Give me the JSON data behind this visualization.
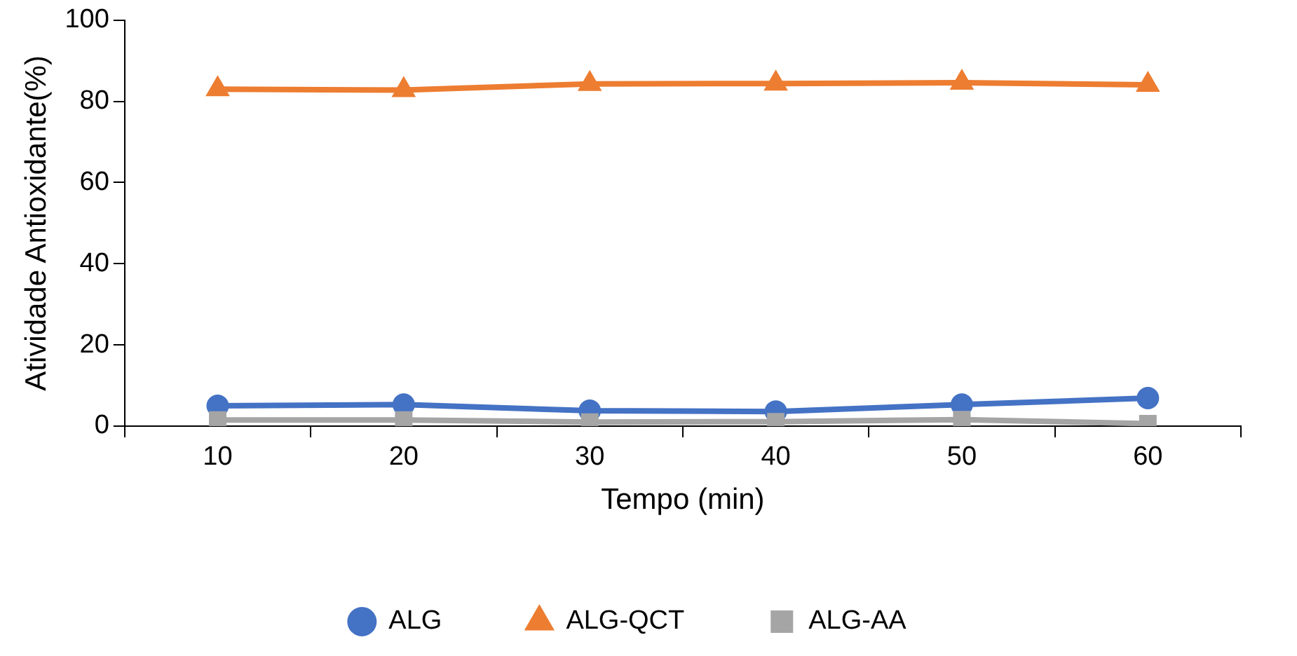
{
  "chart_data": {
    "type": "line",
    "xlabel": "Tempo (min)",
    "ylabel": "Atividade Antioxidante(%)",
    "categories": [
      "10",
      "20",
      "30",
      "40",
      "50",
      "60"
    ],
    "series": [
      {
        "name": "ALG",
        "color": "#4472c4",
        "marker": "circle",
        "values": [
          5.0,
          5.3,
          3.8,
          3.6,
          5.3,
          6.9
        ]
      },
      {
        "name": "ALG-QCT",
        "color": "#ed7d31",
        "marker": "triangle",
        "values": [
          83.0,
          82.8,
          84.3,
          84.4,
          84.6,
          84.1
        ]
      },
      {
        "name": "ALG-AA",
        "color": "#a5a5a5",
        "marker": "square",
        "values": [
          1.5,
          1.5,
          1.0,
          1.1,
          1.6,
          0.6
        ]
      }
    ],
    "ylim": [
      0,
      100
    ],
    "yticks": [
      0,
      20,
      40,
      60,
      80,
      100
    ],
    "grid": false,
    "legend": "bottom"
  }
}
